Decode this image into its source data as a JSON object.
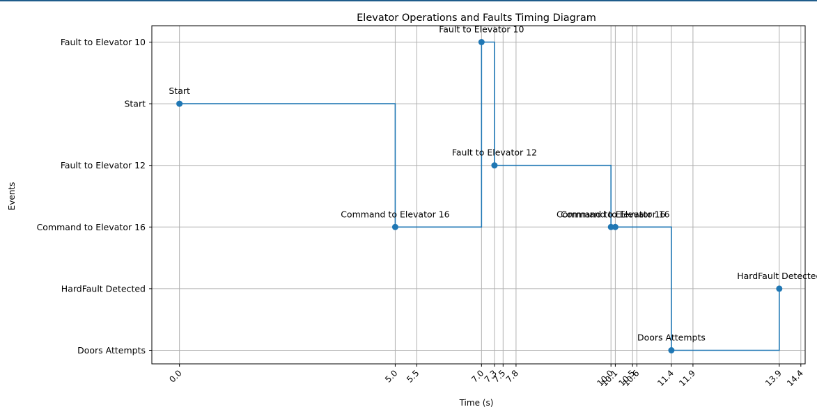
{
  "chart_data": {
    "type": "line",
    "step": "post",
    "title": "Elevator Operations and Faults Timing Diagram",
    "xlabel": "Time (s)",
    "ylabel": "Events",
    "xlim": [
      -0.64,
      14.5
    ],
    "grid": true,
    "y_categories": [
      "Doors Attempts",
      "HardFault Detected",
      "Command to Elevator 16",
      "Fault to Elevator 12",
      "Start",
      "Fault to Elevator 10"
    ],
    "x_ticks": [
      0.0,
      5.0,
      5.5,
      7.0,
      7.3,
      7.5,
      7.8,
      10.0,
      10.1,
      10.5,
      10.6,
      11.4,
      11.9,
      13.9,
      14.4
    ],
    "x_tick_labels": [
      "0.0",
      "5.0",
      "5.5",
      "7.0",
      "7.3",
      "7.5",
      "7.8",
      "10.0",
      "10.1",
      "10.5",
      "10.6",
      "11.4",
      "11.9",
      "13.9",
      "14.4"
    ],
    "points": [
      {
        "x": 0.0,
        "event": "Start",
        "label": "Start"
      },
      {
        "x": 5.0,
        "event": "Command to Elevator 16",
        "label": "Command to Elevator 16"
      },
      {
        "x": 7.0,
        "event": "Fault to Elevator 10",
        "label": "Fault to Elevator 10"
      },
      {
        "x": 7.3,
        "event": "Fault to Elevator 12",
        "label": "Fault to Elevator 12"
      },
      {
        "x": 10.0,
        "event": "Command to Elevator 16",
        "label": "Command to Elevator 16"
      },
      {
        "x": 10.1,
        "event": "Command to Elevator 16",
        "label": "Command to Elevator 16"
      },
      {
        "x": 11.4,
        "event": "Doors Attempts",
        "label": "Doors Attempts"
      },
      {
        "x": 13.9,
        "event": "HardFault Detected",
        "label": "HardFault Detected"
      }
    ],
    "line_color": "#1f77b4",
    "grid_color": "#b0b0b0"
  }
}
